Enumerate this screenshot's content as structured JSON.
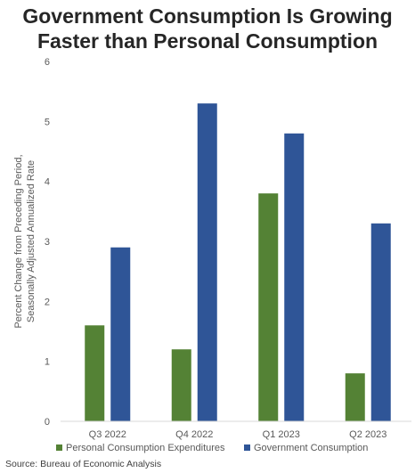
{
  "chart_title": {
    "line1": "Government Consumption Is Growing",
    "line2": "Faster than Personal Consumption"
  },
  "source": "Source: Bureau of Economic Analysis",
  "chart_data": {
    "type": "bar",
    "title": "Government Consumption Is Growing Faster than Personal Consumption",
    "categories": [
      "Q3 2022",
      "Q4 2022",
      "Q1 2023",
      "Q2 2023"
    ],
    "series": [
      {
        "name": "Personal Consumption Expenditures",
        "color": "#548235",
        "values": [
          1.6,
          1.2,
          3.8,
          0.8
        ]
      },
      {
        "name": "Government Consumption",
        "color": "#2F5597",
        "values": [
          2.9,
          5.3,
          4.8,
          3.3
        ]
      }
    ],
    "ylabel_lines": [
      "Percent Change from Preceding Period,",
      "Seasonally Adjusted Annualized Rate"
    ],
    "xlabel": "",
    "ylim": [
      0,
      6
    ],
    "yticks": [
      0,
      1,
      2,
      3,
      4,
      5,
      6
    ],
    "grid": false,
    "legend_position": "bottom"
  }
}
